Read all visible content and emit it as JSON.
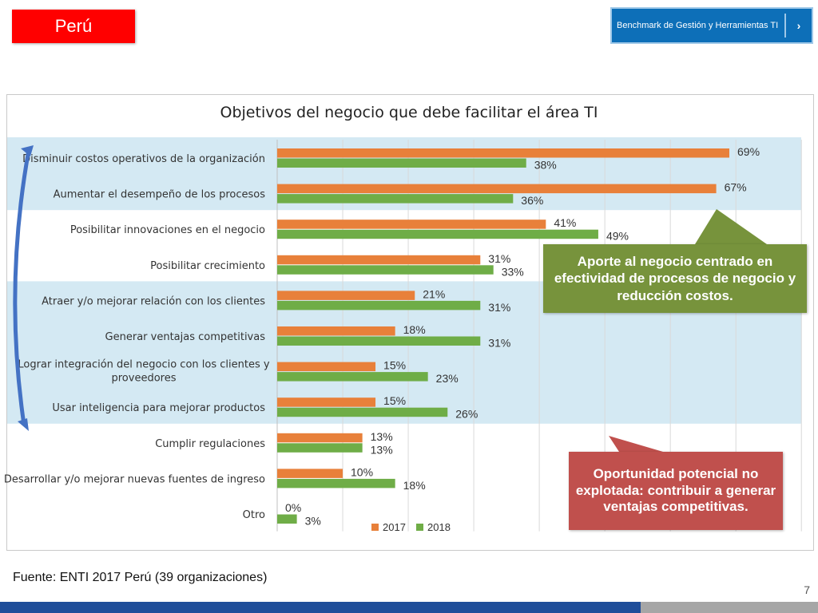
{
  "header": {
    "country": "Perú",
    "benchmark_label": "Benchmark de Gestión y Herramientas TI",
    "benchmark_chevron": "›"
  },
  "colors": {
    "series_2017": "#e8803a",
    "series_2018": "#6fad47",
    "band_bg": "#d4e9f3",
    "callout_green": "#77933c",
    "callout_red": "#c0504d",
    "arrow": "#4472c4"
  },
  "chart_data": {
    "type": "bar",
    "orientation": "horizontal",
    "title": "Objetivos del negocio que debe facilitar el área TI",
    "categories": [
      "Disminuir costos operativos de la organización",
      "Aumentar el desempeño de los procesos",
      "Posibilitar innovaciones en el negocio",
      "Posibilitar crecimiento",
      "Atraer y/o mejorar relación con los clientes",
      "Generar ventajas competitivas",
      "Lograr integración del negocio con los clientes y proveedores",
      "Usar inteligencia para mejorar productos",
      "Cumplir regulaciones",
      "Desarrollar y/o mejorar nuevas fuentes de ingreso",
      "Otro"
    ],
    "series": [
      {
        "name": "2017",
        "values": [
          69,
          67,
          41,
          31,
          21,
          18,
          15,
          15,
          13,
          10,
          0
        ]
      },
      {
        "name": "2018",
        "values": [
          38,
          36,
          49,
          33,
          31,
          31,
          23,
          26,
          13,
          18,
          3
        ]
      }
    ],
    "value_suffix": "%",
    "xlim": [
      0,
      80
    ],
    "legend": "bottom",
    "grid": true
  },
  "callouts": {
    "green": "Aporte al negocio centrado en efectividad de procesos de negocio y reducción costos.",
    "red": "Oportunidad potencial no explotada: contribuir a generar ventajas competitivas."
  },
  "footer": {
    "source": "Fuente: ENTI 2017 Perú (39 organizaciones)",
    "page_number": "7"
  }
}
